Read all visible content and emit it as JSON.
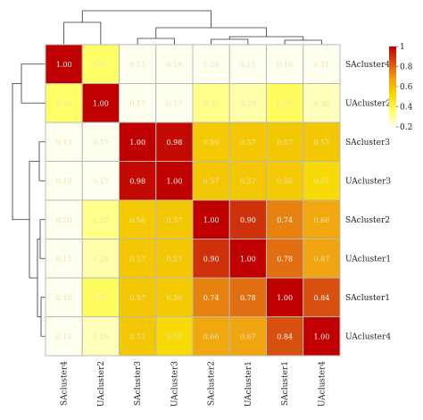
{
  "chart_data": {
    "type": "heatmap",
    "title": "",
    "xlabel": "",
    "ylabel": "",
    "rows": [
      "SAcluster4",
      "UAcluster2",
      "SAcluster3",
      "UAcluster3",
      "SAcluster2",
      "UAcluster1",
      "SAcluster1",
      "UAcluster4"
    ],
    "columns": [
      "SAcluster4",
      "UAcluster2",
      "SAcluster3",
      "UAcluster3",
      "SAcluster2",
      "UAcluster1",
      "SAcluster1",
      "UAcluster4"
    ],
    "values": [
      [
        1.0,
        0.36,
        0.13,
        0.18,
        0.2,
        0.15,
        0.1,
        0.11
      ],
      [
        0.36,
        1.0,
        0.17,
        0.17,
        0.32,
        0.28,
        0.37,
        0.26
      ],
      [
        0.13,
        0.17,
        1.0,
        0.98,
        0.56,
        0.57,
        0.57,
        0.57
      ],
      [
        0.18,
        0.17,
        0.98,
        1.0,
        0.57,
        0.57,
        0.56,
        0.51
      ],
      [
        0.2,
        0.32,
        0.56,
        0.57,
        1.0,
        0.9,
        0.74,
        0.66
      ],
      [
        0.15,
        0.28,
        0.57,
        0.57,
        0.9,
        1.0,
        0.78,
        0.67
      ],
      [
        0.1,
        0.37,
        0.57,
        0.56,
        0.74,
        0.78,
        1.0,
        0.84
      ],
      [
        0.11,
        0.26,
        0.57,
        0.51,
        0.66,
        0.67,
        0.84,
        1.0
      ]
    ],
    "color_scale": {
      "min": 0.2,
      "max": 1.0,
      "stops": [
        "#fffff0",
        "#ffff66",
        "#f6d800",
        "#f0a010",
        "#d85010",
        "#c00000"
      ],
      "ticks": [
        1,
        0.8,
        0.6,
        0.4,
        0.2
      ],
      "tick_labels": [
        "1",
        "0.8",
        "0.6",
        "0.4",
        "0.2"
      ]
    },
    "legend_placement": "top-right",
    "dendrograms": {
      "rows": true,
      "columns": true
    }
  }
}
